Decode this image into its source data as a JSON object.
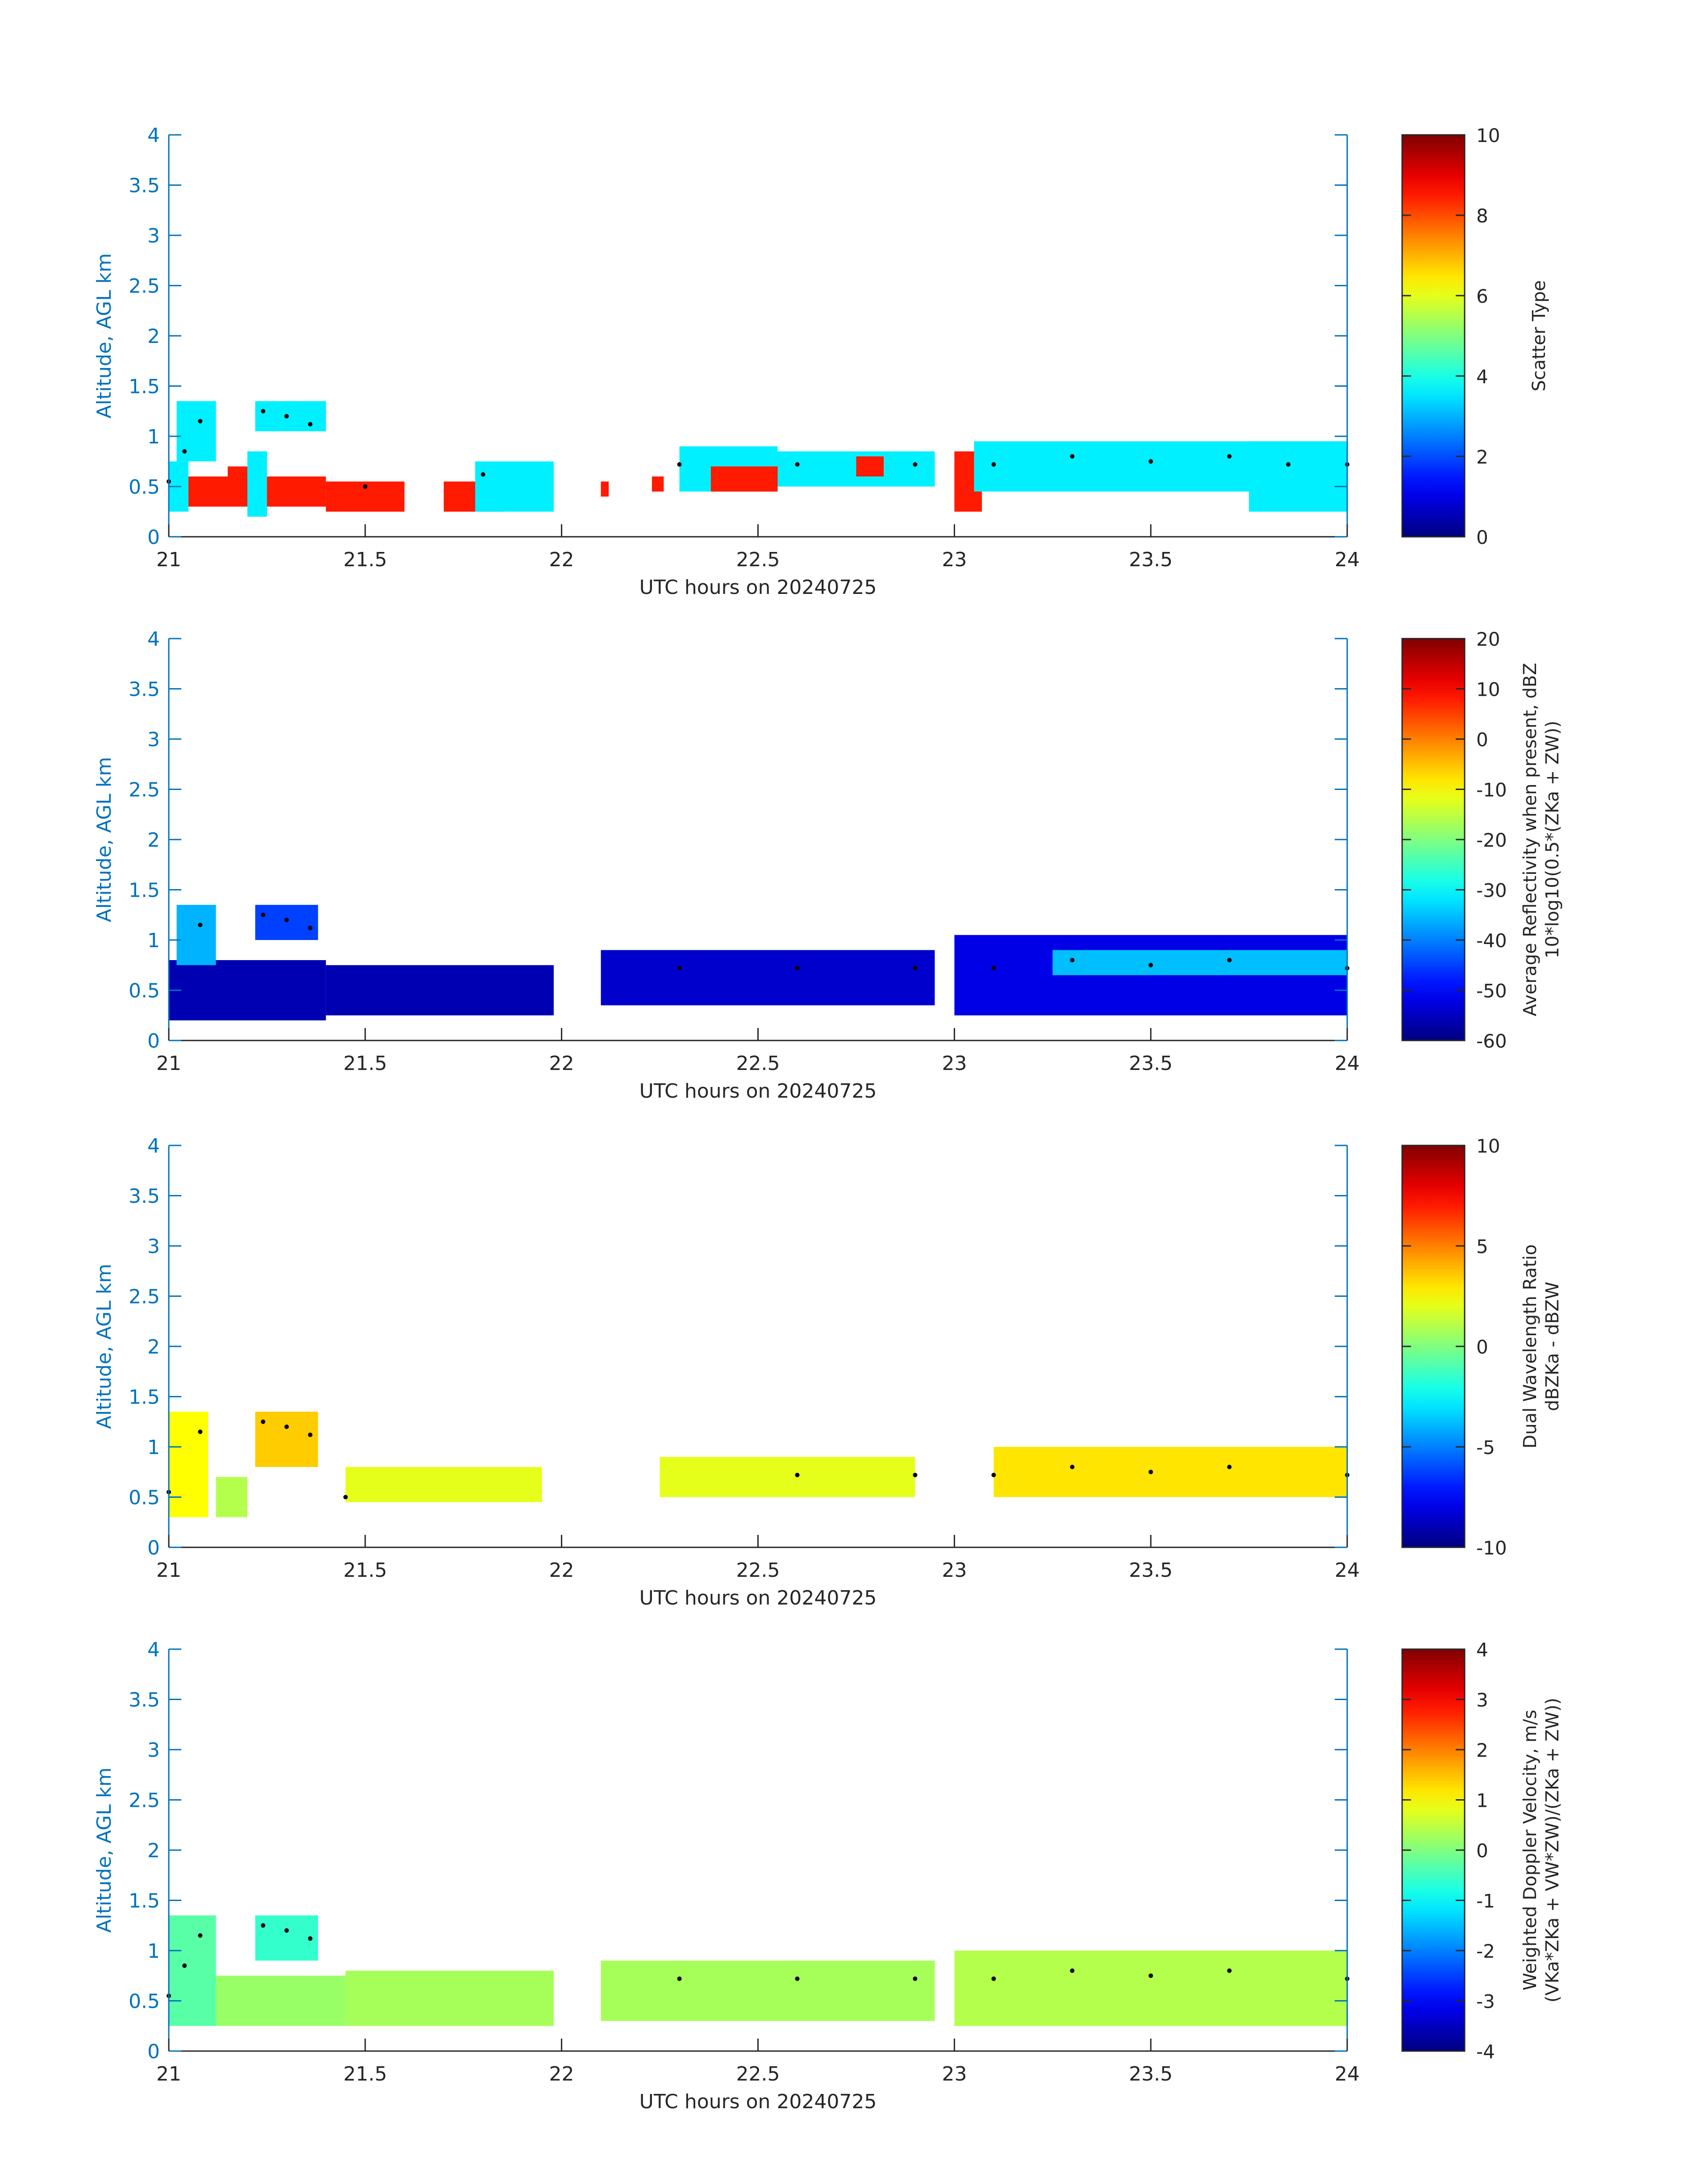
{
  "colors": {
    "axis": "#0072bd",
    "text": "#262626",
    "colorbar_frame": "#262626",
    "marker": "#000000"
  },
  "colormap": "jet",
  "chart_data": [
    {
      "type": "heatmap",
      "ylabel": "Altitude, AGL km",
      "xlabel": "UTC hours on 20240725",
      "xlim": [
        21,
        24
      ],
      "ylim": [
        0,
        4
      ],
      "x_ticks": [
        21,
        21.5,
        22,
        22.5,
        23,
        23.5,
        24
      ],
      "x_tick_labels": [
        "21",
        "21.5",
        "22",
        "22.5",
        "23",
        "23.5",
        "24"
      ],
      "y_ticks": [
        0,
        0.5,
        1,
        1.5,
        2,
        2.5,
        3,
        3.5,
        4
      ],
      "y_tick_labels": [
        "0",
        "0.5",
        "1",
        "1.5",
        "2",
        "2.5",
        "3",
        "3.5",
        "4"
      ],
      "colorbar": {
        "label_lines": [
          "Scatter Type"
        ],
        "clim": [
          0,
          10
        ],
        "ticks": [
          0,
          2,
          4,
          6,
          8,
          10
        ],
        "tick_labels": [
          "0",
          "2",
          "4",
          "6",
          "8",
          "10"
        ]
      },
      "field_rule": "lower band (0.3-0.55 km, 21.0-22.3 h) scatter type ~8.5; cloud layer above scatter type ~3.6",
      "layers": [
        {
          "x": [
            21.0,
            21.05
          ],
          "y": [
            0.25,
            0.75
          ],
          "value": 3.6
        },
        {
          "x": [
            21.02,
            21.12
          ],
          "y": [
            0.75,
            1.35
          ],
          "value": 3.6
        },
        {
          "x": [
            21.05,
            21.4
          ],
          "y": [
            0.3,
            0.6
          ],
          "value": 8.5
        },
        {
          "x": [
            21.15,
            21.2
          ],
          "y": [
            0.4,
            0.7
          ],
          "value": 8.5
        },
        {
          "x": [
            21.22,
            21.4
          ],
          "y": [
            1.05,
            1.35
          ],
          "value": 3.6
        },
        {
          "x": [
            21.2,
            21.25
          ],
          "y": [
            0.2,
            0.85
          ],
          "value": 3.6
        },
        {
          "x": [
            21.4,
            21.6
          ],
          "y": [
            0.25,
            0.55
          ],
          "value": 8.5
        },
        {
          "x": [
            21.7,
            21.85
          ],
          "y": [
            0.25,
            0.55
          ],
          "value": 8.5
        },
        {
          "x": [
            21.78,
            21.98
          ],
          "y": [
            0.25,
            0.75
          ],
          "value": 3.6
        },
        {
          "x": [
            22.1,
            22.12
          ],
          "y": [
            0.4,
            0.55
          ],
          "value": 8.5
        },
        {
          "x": [
            22.23,
            22.26
          ],
          "y": [
            0.45,
            0.6
          ],
          "value": 8.5
        },
        {
          "x": [
            22.3,
            22.55
          ],
          "y": [
            0.45,
            0.9
          ],
          "value": 3.6
        },
        {
          "x": [
            22.38,
            22.55
          ],
          "y": [
            0.45,
            0.7
          ],
          "value": 8.5
        },
        {
          "x": [
            22.55,
            22.95
          ],
          "y": [
            0.5,
            0.85
          ],
          "value": 3.6
        },
        {
          "x": [
            22.75,
            22.82
          ],
          "y": [
            0.6,
            0.8
          ],
          "value": 8.5
        },
        {
          "x": [
            23.0,
            23.07
          ],
          "y": [
            0.25,
            0.85
          ],
          "value": 8.5
        },
        {
          "x": [
            23.05,
            24.0
          ],
          "y": [
            0.45,
            0.95
          ],
          "value": 3.6
        },
        {
          "x": [
            23.75,
            24.0
          ],
          "y": [
            0.25,
            0.95
          ],
          "value": 3.6
        }
      ],
      "cloud_top_markers": [
        {
          "x": 21.0,
          "y": 0.55
        },
        {
          "x": 21.04,
          "y": 0.85
        },
        {
          "x": 21.08,
          "y": 1.15
        },
        {
          "x": 21.24,
          "y": 1.25
        },
        {
          "x": 21.3,
          "y": 1.2
        },
        {
          "x": 21.36,
          "y": 1.12
        },
        {
          "x": 21.5,
          "y": 0.5
        },
        {
          "x": 21.8,
          "y": 0.62
        },
        {
          "x": 22.3,
          "y": 0.72
        },
        {
          "x": 22.6,
          "y": 0.72
        },
        {
          "x": 22.9,
          "y": 0.72
        },
        {
          "x": 23.1,
          "y": 0.72
        },
        {
          "x": 23.3,
          "y": 0.8
        },
        {
          "x": 23.5,
          "y": 0.75
        },
        {
          "x": 23.7,
          "y": 0.8
        },
        {
          "x": 23.85,
          "y": 0.72
        },
        {
          "x": 24.0,
          "y": 0.72
        }
      ]
    },
    {
      "type": "heatmap",
      "ylabel": "Altitude, AGL km",
      "xlabel": "UTC hours on 20240725",
      "xlim": [
        21,
        24
      ],
      "ylim": [
        0,
        4
      ],
      "x_ticks": [
        21,
        21.5,
        22,
        22.5,
        23,
        23.5,
        24
      ],
      "x_tick_labels": [
        "21",
        "21.5",
        "22",
        "22.5",
        "23",
        "23.5",
        "24"
      ],
      "y_ticks": [
        0,
        0.5,
        1,
        1.5,
        2,
        2.5,
        3,
        3.5,
        4
      ],
      "y_tick_labels": [
        "0",
        "0.5",
        "1",
        "1.5",
        "2",
        "2.5",
        "3",
        "3.5",
        "4"
      ],
      "colorbar": {
        "label_lines": [
          "Average Reflectivity when present, dBZ",
          "10*log10(0.5*(Z",
          "Ka",
          " + Z",
          "W",
          "))"
        ],
        "clim": [
          -60,
          20
        ],
        "ticks": [
          -60,
          -50,
          -40,
          -30,
          -20,
          -10,
          0,
          10,
          20
        ],
        "tick_labels": [
          "-60",
          "-50",
          "-40",
          "-30",
          "-20",
          "-10",
          "0",
          "10",
          "20"
        ]
      },
      "field_rule": "reflectivity mostly -55 to -50 dBZ near base, -40 to -33 dBZ in upper cloud cores",
      "layers": [
        {
          "x": [
            21.0,
            21.4
          ],
          "y": [
            0.2,
            0.8
          ],
          "value": -56
        },
        {
          "x": [
            21.02,
            21.12
          ],
          "y": [
            0.75,
            1.35
          ],
          "value": -36
        },
        {
          "x": [
            21.22,
            21.38
          ],
          "y": [
            1.0,
            1.35
          ],
          "value": -45
        },
        {
          "x": [
            21.4,
            21.98
          ],
          "y": [
            0.25,
            0.75
          ],
          "value": -56
        },
        {
          "x": [
            22.1,
            22.95
          ],
          "y": [
            0.35,
            0.9
          ],
          "value": -54
        },
        {
          "x": [
            23.0,
            24.0
          ],
          "y": [
            0.25,
            1.05
          ],
          "value": -52
        },
        {
          "x": [
            23.25,
            24.0
          ],
          "y": [
            0.65,
            0.9
          ],
          "value": -35
        }
      ],
      "cloud_top_markers": [
        {
          "x": 21.08,
          "y": 1.15
        },
        {
          "x": 21.24,
          "y": 1.25
        },
        {
          "x": 21.3,
          "y": 1.2
        },
        {
          "x": 21.36,
          "y": 1.12
        },
        {
          "x": 22.3,
          "y": 0.72
        },
        {
          "x": 22.6,
          "y": 0.72
        },
        {
          "x": 22.9,
          "y": 0.72
        },
        {
          "x": 23.1,
          "y": 0.72
        },
        {
          "x": 23.3,
          "y": 0.8
        },
        {
          "x": 23.5,
          "y": 0.75
        },
        {
          "x": 23.7,
          "y": 0.8
        },
        {
          "x": 24.0,
          "y": 0.72
        }
      ]
    },
    {
      "type": "heatmap",
      "ylabel": "Altitude, AGL km",
      "xlabel": "UTC hours on 20240725",
      "xlim": [
        21,
        24
      ],
      "ylim": [
        0,
        4
      ],
      "x_ticks": [
        21,
        21.5,
        22,
        22.5,
        23,
        23.5,
        24
      ],
      "x_tick_labels": [
        "21",
        "21.5",
        "22",
        "22.5",
        "23",
        "23.5",
        "24"
      ],
      "y_ticks": [
        0,
        0.5,
        1,
        1.5,
        2,
        2.5,
        3,
        3.5,
        4
      ],
      "y_tick_labels": [
        "0",
        "0.5",
        "1",
        "1.5",
        "2",
        "2.5",
        "3",
        "3.5",
        "4"
      ],
      "colorbar": {
        "label_lines": [
          "Dual Wavelength Ratio",
          "dBZ",
          "Ka",
          " - dBZ",
          "W"
        ],
        "clim": [
          -10,
          10
        ],
        "ticks": [
          -10,
          -5,
          0,
          5,
          10
        ],
        "tick_labels": [
          "-10",
          "-5",
          "0",
          "5",
          "10"
        ]
      },
      "field_rule": "dual wavelength ratio mostly 1 to 3 dB",
      "layers": [
        {
          "x": [
            21.0,
            21.1
          ],
          "y": [
            0.3,
            1.35
          ],
          "value": 2.5
        },
        {
          "x": [
            21.12,
            21.2
          ],
          "y": [
            0.3,
            0.7
          ],
          "value": 1
        },
        {
          "x": [
            21.22,
            21.38
          ],
          "y": [
            0.8,
            1.35
          ],
          "value": 3.5
        },
        {
          "x": [
            21.45,
            21.95
          ],
          "y": [
            0.45,
            0.8
          ],
          "value": 2
        },
        {
          "x": [
            22.25,
            22.9
          ],
          "y": [
            0.5,
            0.9
          ],
          "value": 2
        },
        {
          "x": [
            23.1,
            24.0
          ],
          "y": [
            0.5,
            1.0
          ],
          "value": 3
        }
      ],
      "cloud_top_markers": [
        {
          "x": 21.0,
          "y": 0.55
        },
        {
          "x": 21.08,
          "y": 1.15
        },
        {
          "x": 21.24,
          "y": 1.25
        },
        {
          "x": 21.3,
          "y": 1.2
        },
        {
          "x": 21.36,
          "y": 1.12
        },
        {
          "x": 21.45,
          "y": 0.5
        },
        {
          "x": 22.6,
          "y": 0.72
        },
        {
          "x": 22.9,
          "y": 0.72
        },
        {
          "x": 23.1,
          "y": 0.72
        },
        {
          "x": 23.3,
          "y": 0.8
        },
        {
          "x": 23.5,
          "y": 0.75
        },
        {
          "x": 23.7,
          "y": 0.8
        },
        {
          "x": 24.0,
          "y": 0.72
        }
      ]
    },
    {
      "type": "heatmap",
      "ylabel": "Altitude, AGL km",
      "xlabel": "UTC hours on 20240725",
      "xlim": [
        21,
        24
      ],
      "ylim": [
        0,
        4
      ],
      "x_ticks": [
        21,
        21.5,
        22,
        22.5,
        23,
        23.5,
        24
      ],
      "x_tick_labels": [
        "21",
        "21.5",
        "22",
        "22.5",
        "23",
        "23.5",
        "24"
      ],
      "y_ticks": [
        0,
        0.5,
        1,
        1.5,
        2,
        2.5,
        3,
        3.5,
        4
      ],
      "y_tick_labels": [
        "0",
        "0.5",
        "1",
        "1.5",
        "2",
        "2.5",
        "3",
        "3.5",
        "4"
      ],
      "colorbar": {
        "label_lines": [
          "Weighted Doppler Velocity, m/s",
          "(V",
          "Ka",
          "*Z",
          "Ka",
          " + V",
          "W",
          "*Z",
          "W",
          ")/(Z",
          "Ka",
          " + Z",
          "W",
          "))"
        ],
        "clim": [
          -4,
          4
        ],
        "ticks": [
          -4,
          -3,
          -2,
          -1,
          0,
          1,
          2,
          3,
          4
        ],
        "tick_labels": [
          "-4",
          "-3",
          "-2",
          "-1",
          "0",
          "1",
          "2",
          "3",
          "4"
        ]
      },
      "field_rule": "Doppler velocity mostly -0.5 to 1 m/s",
      "layers": [
        {
          "x": [
            21.0,
            21.12
          ],
          "y": [
            0.25,
            1.35
          ],
          "value": -0.3
        },
        {
          "x": [
            21.12,
            21.45
          ],
          "y": [
            0.25,
            0.75
          ],
          "value": 0.2
        },
        {
          "x": [
            21.22,
            21.38
          ],
          "y": [
            0.9,
            1.35
          ],
          "value": -0.6
        },
        {
          "x": [
            21.45,
            21.98
          ],
          "y": [
            0.25,
            0.8
          ],
          "value": 0.3
        },
        {
          "x": [
            22.1,
            22.95
          ],
          "y": [
            0.3,
            0.9
          ],
          "value": 0.3
        },
        {
          "x": [
            23.0,
            24.0
          ],
          "y": [
            0.25,
            1.0
          ],
          "value": 0.4
        }
      ],
      "cloud_top_markers": [
        {
          "x": 21.0,
          "y": 0.55
        },
        {
          "x": 21.04,
          "y": 0.85
        },
        {
          "x": 21.08,
          "y": 1.15
        },
        {
          "x": 21.24,
          "y": 1.25
        },
        {
          "x": 21.3,
          "y": 1.2
        },
        {
          "x": 21.36,
          "y": 1.12
        },
        {
          "x": 22.3,
          "y": 0.72
        },
        {
          "x": 22.6,
          "y": 0.72
        },
        {
          "x": 22.9,
          "y": 0.72
        },
        {
          "x": 23.1,
          "y": 0.72
        },
        {
          "x": 23.3,
          "y": 0.8
        },
        {
          "x": 23.5,
          "y": 0.75
        },
        {
          "x": 23.7,
          "y": 0.8
        },
        {
          "x": 24.0,
          "y": 0.72
        }
      ]
    }
  ]
}
